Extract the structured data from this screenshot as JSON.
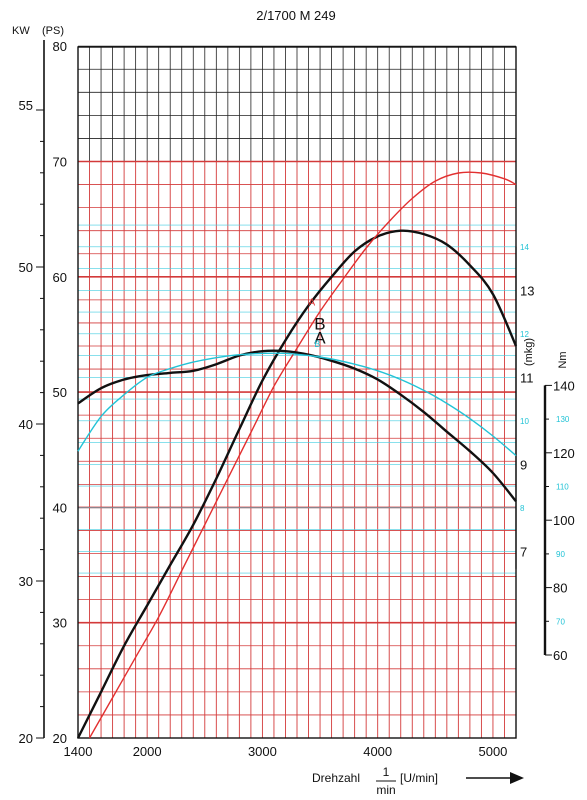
{
  "chart_data": {
    "type": "line",
    "title": "2/1700 M 249",
    "units": {
      "kw": "KW",
      "ps": "(PS)",
      "mkg": "(mkg)",
      "nm": "Nm"
    },
    "xlabel": "Drehzahl",
    "x_unit_num": "1",
    "x_unit_den": "min",
    "x_unit_bracket": "[U/min]",
    "xlim": [
      1400,
      5200
    ],
    "x_ticks": [
      1400,
      2000,
      3000,
      4000,
      5000
    ],
    "kw_ticks": [
      20,
      30,
      40,
      50
    ],
    "ps_ticks": [
      20,
      30,
      40,
      50,
      60,
      70,
      80
    ],
    "ps_ticks_upper": [
      55
    ],
    "mkg_ticks": [
      7,
      9,
      11,
      13
    ],
    "nm_ticks": [
      60,
      80,
      100,
      120,
      140
    ],
    "series": [
      {
        "name": "A",
        "color": "#111111",
        "axis": "ps",
        "x": [
          1400,
          1600,
          1800,
          2000,
          2200,
          2400,
          2600,
          2800,
          3000,
          3200,
          3400,
          3600,
          3800,
          4000,
          4200,
          4400,
          4600,
          4800,
          5000,
          5200
        ],
        "y": [
          20,
          24,
          28,
          31.5,
          35,
          38.5,
          42.5,
          46.8,
          51,
          54.5,
          57.5,
          60,
          62.2,
          63.5,
          64,
          63.7,
          62.8,
          61,
          58.5,
          54
        ]
      },
      {
        "name": "",
        "color": "#e23030",
        "axis": "ps",
        "x": [
          1500,
          1700,
          1900,
          2100,
          2300,
          2500,
          2700,
          2900,
          3100,
          3300,
          3500,
          3700,
          3900,
          4100,
          4300,
          4500,
          4700,
          4900,
          5100,
          5200
        ],
        "y": [
          20,
          23.5,
          27,
          30.5,
          34.5,
          38.5,
          42.5,
          46.5,
          50.5,
          53.8,
          57,
          59.8,
          62.5,
          64.8,
          66.8,
          68.3,
          69,
          69,
          68.5,
          68
        ]
      },
      {
        "name": "B",
        "color": "#111111",
        "axis": "mkg",
        "x": [
          1400,
          1600,
          1800,
          2000,
          2200,
          2400,
          2600,
          2800,
          3000,
          3200,
          3400,
          3600,
          3800,
          4000,
          4200,
          4400,
          4600,
          4800,
          5000,
          5200
        ],
        "y": [
          10.4,
          10.75,
          10.95,
          11.05,
          11.1,
          11.15,
          11.3,
          11.5,
          11.6,
          11.6,
          11.52,
          11.38,
          11.2,
          10.95,
          10.6,
          10.2,
          9.75,
          9.3,
          8.8,
          8.15
        ]
      },
      {
        "name": "",
        "color": "#22c3d6",
        "axis": "mkg",
        "x": [
          1400,
          1600,
          1800,
          2000,
          2200,
          2400,
          2600,
          2800,
          3000,
          3200,
          3400,
          3600,
          3800,
          4000,
          4200,
          4400,
          4600,
          4800,
          5000,
          5200
        ],
        "y": [
          9.3,
          10.1,
          10.6,
          11.0,
          11.2,
          11.35,
          11.45,
          11.52,
          11.55,
          11.55,
          11.5,
          11.42,
          11.3,
          11.15,
          10.95,
          10.7,
          10.4,
          10.05,
          9.65,
          9.2
        ]
      }
    ],
    "curve_labels": [
      {
        "text": "A",
        "x": 3450,
        "y": 54.2,
        "axis": "ps",
        "color": "#111111",
        "size": 17
      },
      {
        "text": "A",
        "x": 3400,
        "y": 57.5,
        "axis": "ps",
        "color": "#e23030",
        "size": 10
      },
      {
        "text": "B",
        "x": 3450,
        "y": 12.1,
        "axis": "mkg",
        "color": "#111111",
        "size": 17
      },
      {
        "text": "B",
        "x": 3450,
        "y": 11.7,
        "axis": "mkg",
        "color": "#22c3d6",
        "size": 9
      }
    ],
    "grid": true
  }
}
